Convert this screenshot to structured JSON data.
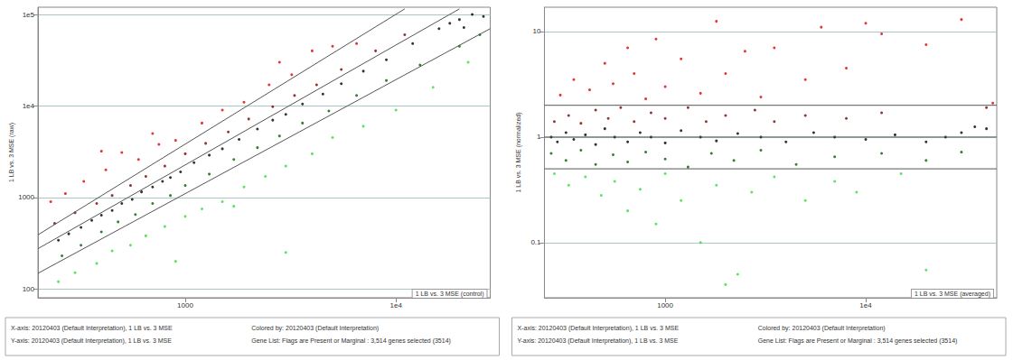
{
  "chart_data": [
    {
      "type": "scatter",
      "x_label": "1 LB vs. 3 MSE (control)",
      "y_label": "1 LB vs. 3 MSE (raw)",
      "log": true,
      "grid": true,
      "xlim": [
        200,
        28000
      ],
      "ylim": [
        80,
        120000
      ],
      "xticks": [
        1000,
        {
          "value": 10000,
          "label": "1e4"
        }
      ],
      "yticks": [
        100,
        1000,
        {
          "value": 10000,
          "label": "1e4"
        },
        {
          "value": 100000,
          "label": "1e5"
        }
      ],
      "reference_lines": [
        {
          "points": [
            [
              200,
              390
            ],
            [
              11000,
              115000
            ]
          ]
        },
        {
          "points": [
            [
              200,
              275
            ],
            [
              20000,
              115000
            ]
          ]
        },
        {
          "points": [
            [
              200,
              148
            ],
            [
              28000,
              70000
            ]
          ]
        }
      ],
      "annotations": [
        "X-axis: 20120403 (Default Interpretation), 1 LB vs. 3 MSE",
        "Y-axis: 20120403 (Default Interpretation), 1 LB vs. 3 MSE",
        "Colored by: 20120403 (Default Interpretation)",
        "Gene List: Flags are Present or Marginal : 3,514 genes selected (3514)"
      ],
      "series": [
        {
          "color": "#33dd33",
          "values": [
            [
              250,
              120
            ],
            [
              300,
              150
            ],
            [
              380,
              190
            ],
            [
              450,
              260
            ],
            [
              550,
              300
            ],
            [
              650,
              380
            ],
            [
              800,
              480
            ],
            [
              1000,
              620
            ],
            [
              1200,
              750
            ],
            [
              1500,
              900
            ],
            [
              1900,
              1300
            ],
            [
              2400,
              1700
            ],
            [
              3000,
              2200
            ],
            [
              4000,
              3000
            ],
            [
              5000,
              4500
            ],
            [
              7000,
              6000
            ],
            [
              10000,
              9000
            ],
            [
              15000,
              16000
            ],
            [
              22000,
              30000
            ],
            [
              900,
              200
            ],
            [
              3000,
              250
            ],
            [
              1700,
              800
            ]
          ]
        },
        {
          "color": "#006000",
          "values": [
            [
              260,
              230
            ],
            [
              320,
              300
            ],
            [
              400,
              420
            ],
            [
              480,
              540
            ],
            [
              580,
              650
            ],
            [
              700,
              860
            ],
            [
              850,
              1050
            ],
            [
              1000,
              1350
            ],
            [
              1300,
              1800
            ],
            [
              1700,
              2600
            ],
            [
              2200,
              3500
            ],
            [
              2800,
              4700
            ],
            [
              3600,
              6500
            ],
            [
              4800,
              8800
            ],
            [
              6500,
              13000
            ],
            [
              9000,
              19000
            ],
            [
              13000,
              28000
            ],
            [
              20000,
              45000
            ],
            [
              25000,
              60000
            ]
          ]
        },
        {
          "color": "#000000",
          "values": [
            [
              250,
              340
            ],
            [
              280,
              400
            ],
            [
              320,
              470
            ],
            [
              360,
              560
            ],
            [
              400,
              640
            ],
            [
              450,
              720
            ],
            [
              500,
              860
            ],
            [
              560,
              950
            ],
            [
              620,
              1150
            ],
            [
              700,
              1300
            ],
            [
              780,
              1500
            ],
            [
              850,
              1650
            ],
            [
              950,
              1900
            ],
            [
              1100,
              2400
            ],
            [
              1300,
              2900
            ],
            [
              1500,
              3400
            ],
            [
              1800,
              4300
            ],
            [
              2200,
              5600
            ],
            [
              2600,
              7000
            ],
            [
              3000,
              8100
            ],
            [
              3600,
              10500
            ],
            [
              4500,
              13500
            ],
            [
              5500,
              17500
            ],
            [
              7000,
              24000
            ],
            [
              9000,
              32000
            ],
            [
              12000,
              48000
            ],
            [
              16000,
              70000
            ],
            [
              20000,
              88000
            ],
            [
              23000,
              100000
            ],
            [
              26000,
              95000
            ],
            [
              21000,
              72000
            ],
            [
              18000,
              80000
            ]
          ]
        },
        {
          "color": "#7a0000",
          "values": [
            [
              240,
              520
            ],
            [
              300,
              680
            ],
            [
              380,
              860
            ],
            [
              450,
              1050
            ],
            [
              550,
              1350
            ],
            [
              650,
              1700
            ],
            [
              800,
              2200
            ],
            [
              1000,
              3000
            ],
            [
              1250,
              3900
            ],
            [
              1600,
              5200
            ],
            [
              2000,
              7200
            ],
            [
              2600,
              9800
            ],
            [
              3300,
              13000
            ],
            [
              4200,
              17000
            ],
            [
              5500,
              25000
            ],
            [
              8000,
              40000
            ],
            [
              11000,
              60000
            ]
          ]
        },
        {
          "color": "#e00000",
          "values": [
            [
              230,
              900
            ],
            [
              270,
              1100
            ],
            [
              330,
              1500
            ],
            [
              420,
              2000
            ],
            [
              500,
              3100
            ],
            [
              600,
              2600
            ],
            [
              750,
              3800
            ],
            [
              900,
              4200
            ],
            [
              1200,
              6500
            ],
            [
              1500,
              9000
            ],
            [
              1900,
              11000
            ],
            [
              2500,
              17000
            ],
            [
              3200,
              22000
            ],
            [
              4000,
              40000
            ],
            [
              5000,
              45000
            ],
            [
              6500,
              48000
            ],
            [
              2800,
              30000
            ],
            [
              700,
              5000
            ],
            [
              400,
              3200
            ]
          ]
        }
      ]
    },
    {
      "type": "scatter",
      "x_label": "1 LB vs. 3 MSE (averaged)",
      "y_label": "1 LB vs. 3 MSE (normalized)",
      "log": true,
      "grid": true,
      "xlim": [
        250,
        45000
      ],
      "ylim": [
        0.03,
        17
      ],
      "xticks": [
        1000,
        {
          "value": 10000,
          "label": "1e4"
        }
      ],
      "yticks": [
        0.1,
        1,
        10
      ],
      "reference_lines": [
        {
          "y": 2
        },
        {
          "y": 1
        },
        {
          "y": 0.5
        }
      ],
      "annotations": [
        "X-axis: 20120403 (Default Interpretation), 1 LB vs. 3 MSE",
        "Y-axis: 20120403 (Default Interpretation), 1 LB vs. 3 MSE",
        "Colored by: 20120403 (Default Interpretation)",
        "Gene List: Flags are Present or Marginal : 3,514 genes selected (3514)"
      ],
      "series": [
        {
          "color": "#33dd33",
          "values": [
            [
              280,
              0.45
            ],
            [
              330,
              0.35
            ],
            [
              400,
              0.42
            ],
            [
              480,
              0.28
            ],
            [
              560,
              0.38
            ],
            [
              650,
              0.2
            ],
            [
              750,
              0.32
            ],
            [
              900,
              0.15
            ],
            [
              1000,
              0.45
            ],
            [
              1200,
              0.25
            ],
            [
              1500,
              0.1
            ],
            [
              1800,
              0.35
            ],
            [
              2000,
              0.04
            ],
            [
              2300,
              0.05
            ],
            [
              2700,
              0.3
            ],
            [
              3500,
              0.42
            ],
            [
              5000,
              0.25
            ],
            [
              7000,
              0.38
            ],
            [
              15000,
              0.45
            ],
            [
              20000,
              0.055
            ],
            [
              9000,
              0.3
            ]
          ]
        },
        {
          "color": "#006000",
          "values": [
            [
              270,
              0.7
            ],
            [
              320,
              0.6
            ],
            [
              380,
              0.75
            ],
            [
              450,
              0.55
            ],
            [
              550,
              0.68
            ],
            [
              650,
              0.58
            ],
            [
              800,
              0.72
            ],
            [
              1000,
              0.62
            ],
            [
              1300,
              0.52
            ],
            [
              1700,
              0.7
            ],
            [
              2200,
              0.6
            ],
            [
              3000,
              0.75
            ],
            [
              4500,
              0.55
            ],
            [
              7000,
              0.65
            ],
            [
              12000,
              0.7
            ],
            [
              20000,
              0.6
            ],
            [
              30000,
              0.72
            ]
          ]
        },
        {
          "color": "#000000",
          "values": [
            [
              270,
              1.0
            ],
            [
              290,
              0.9
            ],
            [
              320,
              1.1
            ],
            [
              350,
              0.95
            ],
            [
              400,
              1.05
            ],
            [
              450,
              0.85
            ],
            [
              500,
              1.2
            ],
            [
              560,
              1.0
            ],
            [
              650,
              0.9
            ],
            [
              750,
              1.1
            ],
            [
              850,
              1.0
            ],
            [
              1000,
              0.88
            ],
            [
              1200,
              1.15
            ],
            [
              1500,
              1.0
            ],
            [
              1800,
              0.92
            ],
            [
              2300,
              1.08
            ],
            [
              3000,
              1.0
            ],
            [
              4000,
              0.9
            ],
            [
              5500,
              1.1
            ],
            [
              7000,
              1.0
            ],
            [
              10000,
              0.95
            ],
            [
              14000,
              1.05
            ],
            [
              20000,
              0.9
            ],
            [
              25000,
              1.0
            ],
            [
              30000,
              1.1
            ],
            [
              35000,
              1.25
            ],
            [
              40000,
              1.2
            ]
          ]
        },
        {
          "color": "#7a0000",
          "values": [
            [
              280,
              1.4
            ],
            [
              330,
              1.6
            ],
            [
              380,
              1.35
            ],
            [
              450,
              1.8
            ],
            [
              520,
              1.5
            ],
            [
              600,
              1.9
            ],
            [
              700,
              1.4
            ],
            [
              850,
              1.7
            ],
            [
              1000,
              1.5
            ],
            [
              1300,
              1.9
            ],
            [
              1600,
              1.4
            ],
            [
              2000,
              1.6
            ],
            [
              2800,
              1.8
            ],
            [
              3500,
              1.4
            ],
            [
              5000,
              1.6
            ],
            [
              8000,
              1.5
            ],
            [
              12000,
              1.7
            ],
            [
              40000,
              1.9
            ]
          ]
        },
        {
          "color": "#e00000",
          "values": [
            [
              300,
              2.5
            ],
            [
              350,
              3.5
            ],
            [
              420,
              2.8
            ],
            [
              500,
              5
            ],
            [
              550,
              3.2
            ],
            [
              650,
              7
            ],
            [
              700,
              4
            ],
            [
              800,
              2.3
            ],
            [
              900,
              8.5
            ],
            [
              1000,
              3
            ],
            [
              1200,
              5.5
            ],
            [
              1500,
              2.6
            ],
            [
              1800,
              12.5
            ],
            [
              2000,
              4
            ],
            [
              2500,
              6.5
            ],
            [
              3000,
              2.4
            ],
            [
              3500,
              7
            ],
            [
              5000,
              3.5
            ],
            [
              6000,
              11
            ],
            [
              8000,
              4.5
            ],
            [
              10000,
              12
            ],
            [
              12000,
              9.5
            ],
            [
              20000,
              7.5
            ],
            [
              30000,
              13
            ],
            [
              43000,
              2.1
            ]
          ]
        }
      ]
    }
  ]
}
